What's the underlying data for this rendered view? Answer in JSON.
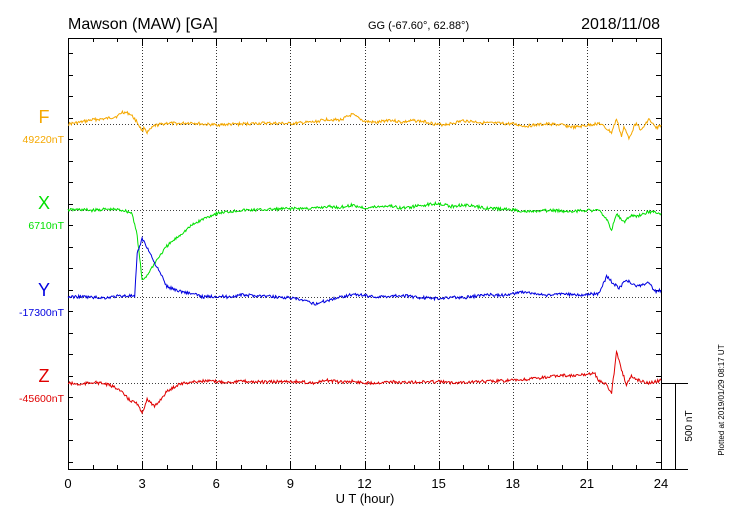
{
  "header": {
    "station": "Mawson (MAW)  [GA]",
    "coords": "GG (-67.60°,  62.88°)",
    "date": "2018/11/08"
  },
  "footer": {
    "plotted": "Plotted at 2019/01/29 08:17 UT"
  },
  "chart_data": {
    "type": "line",
    "xlabel": "U T (hour)",
    "xlim": [
      0,
      24
    ],
    "xticks": [
      "0",
      "3",
      "6",
      "9",
      "12",
      "15",
      "18",
      "21",
      "24"
    ],
    "scale_label": "500 nT",
    "scale_nT": 500,
    "series": [
      {
        "name": "F",
        "baseline_label": "49220nT",
        "baseline_nT": 49220,
        "color": "#f5a800",
        "x": [
          0,
          0.5,
          1,
          1.5,
          2,
          2.2,
          2.5,
          2.7,
          2.8,
          3,
          3.1,
          3.2,
          3.5,
          4,
          4.5,
          5,
          5.5,
          6,
          7,
          8,
          9,
          10,
          10.5,
          11,
          11.5,
          12,
          12.5,
          13,
          13.5,
          14,
          14.5,
          15,
          15.5,
          16,
          17,
          18,
          18.5,
          19,
          19.5,
          20,
          20.5,
          21,
          21.5,
          22,
          22.2,
          22.4,
          22.5,
          22.7,
          23,
          23.2,
          23.5,
          23.8,
          24
        ],
        "y": [
          49220,
          49230,
          49245,
          49250,
          49265,
          49290,
          49280,
          49250,
          49230,
          49180,
          49200,
          49170,
          49210,
          49225,
          49222,
          49228,
          49218,
          49215,
          49220,
          49225,
          49222,
          49232,
          49248,
          49242,
          49275,
          49235,
          49228,
          49245,
          49230,
          49240,
          49232,
          49215,
          49222,
          49240,
          49225,
          49220,
          49208,
          49215,
          49220,
          49214,
          49200,
          49212,
          49225,
          49170,
          49250,
          49150,
          49200,
          49140,
          49230,
          49180,
          49250,
          49195,
          49215
        ]
      },
      {
        "name": "X",
        "baseline_label": "6710nT",
        "baseline_nT": 6710,
        "color": "#00e000",
        "x": [
          0,
          0.5,
          1,
          1.5,
          2,
          2.3,
          2.6,
          2.8,
          3,
          3.2,
          3.5,
          4,
          4.5,
          5,
          5.5,
          6,
          6.5,
          7,
          8,
          9,
          10,
          10.5,
          11,
          11.5,
          12,
          12.5,
          13,
          13.5,
          14,
          14.5,
          15,
          15.5,
          16,
          17,
          18,
          18.5,
          19,
          19.5,
          20,
          20.5,
          21,
          21.5,
          21.8,
          22,
          22.2,
          22.5,
          22.8,
          23,
          23.5,
          24
        ],
        "y": [
          6710,
          6712,
          6708,
          6714,
          6712,
          6706,
          6690,
          6560,
          6300,
          6330,
          6400,
          6500,
          6560,
          6620,
          6660,
          6690,
          6700,
          6708,
          6712,
          6718,
          6720,
          6730,
          6725,
          6738,
          6722,
          6728,
          6735,
          6720,
          6730,
          6740,
          6750,
          6730,
          6740,
          6720,
          6712,
          6700,
          6702,
          6708,
          6704,
          6702,
          6710,
          6705,
          6660,
          6590,
          6690,
          6640,
          6680,
          6670,
          6700,
          6690
        ]
      },
      {
        "name": "Y",
        "baseline_label": "-17300nT",
        "baseline_nT": -17300,
        "color": "#0000e0",
        "x": [
          0,
          0.5,
          1,
          1.5,
          2,
          2.5,
          2.7,
          2.8,
          3,
          3.2,
          3.5,
          3.8,
          4,
          4.5,
          5,
          5.5,
          6,
          6.5,
          7,
          8,
          9,
          9.5,
          10,
          10.5,
          11,
          11.5,
          12,
          12.5,
          13,
          13.5,
          14,
          15,
          15.5,
          16,
          16.5,
          17,
          17.5,
          18,
          18.5,
          19,
          19.5,
          20,
          20.5,
          21,
          21.5,
          21.8,
          22,
          22.3,
          22.6,
          23,
          23.5,
          23.8,
          24
        ],
        "y": [
          -17300,
          -17298,
          -17302,
          -17305,
          -17295,
          -17292,
          -17300,
          -17050,
          -16960,
          -17010,
          -17100,
          -17180,
          -17240,
          -17265,
          -17280,
          -17300,
          -17295,
          -17300,
          -17288,
          -17295,
          -17305,
          -17320,
          -17340,
          -17320,
          -17300,
          -17285,
          -17290,
          -17300,
          -17295,
          -17290,
          -17300,
          -17310,
          -17300,
          -17305,
          -17295,
          -17285,
          -17292,
          -17280,
          -17270,
          -17285,
          -17292,
          -17278,
          -17290,
          -17284,
          -17280,
          -17180,
          -17210,
          -17250,
          -17200,
          -17240,
          -17220,
          -17270,
          -17260
        ]
      },
      {
        "name": "Z",
        "baseline_label": "-45600nT",
        "baseline_nT": -45600,
        "color": "#e00000",
        "x": [
          0,
          0.5,
          1,
          1.5,
          2,
          2.5,
          2.8,
          3,
          3.2,
          3.5,
          4,
          4.5,
          5,
          5.5,
          6,
          6.5,
          7,
          8,
          9,
          10,
          10.5,
          11,
          11.5,
          12,
          12.5,
          13,
          13.5,
          14,
          15,
          15.5,
          16,
          17,
          18,
          18.5,
          19,
          19.5,
          20,
          20.5,
          21,
          21.3,
          21.5,
          21.8,
          22,
          22.2,
          22.4,
          22.6,
          22.8,
          23,
          23.5,
          24
        ],
        "y": [
          -45600,
          -45610,
          -45595,
          -45605,
          -45630,
          -45700,
          -45720,
          -45780,
          -45690,
          -45740,
          -45650,
          -45605,
          -45595,
          -45588,
          -45592,
          -45595,
          -45590,
          -45595,
          -45590,
          -45600,
          -45585,
          -45595,
          -45590,
          -45600,
          -45598,
          -45592,
          -45598,
          -45595,
          -45592,
          -45598,
          -45595,
          -45590,
          -45585,
          -45580,
          -45572,
          -45565,
          -45555,
          -45560,
          -45550,
          -45540,
          -45590,
          -45610,
          -45660,
          -45420,
          -45520,
          -45610,
          -45560,
          -45580,
          -45600,
          -45585
        ]
      }
    ]
  }
}
